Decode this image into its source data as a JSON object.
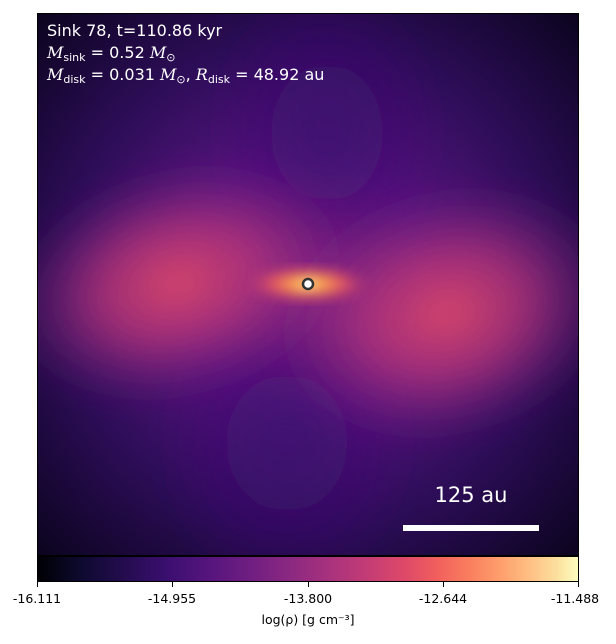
{
  "figure": {
    "title": "Sink 78, t=110.86 kyr",
    "mass_label": "M",
    "mass_sub": "sink",
    "mass_value": "= 0.52",
    "mass_unit": "M",
    "mass_unit_sub": "⊙",
    "disk_mass_label": "M",
    "disk_mass_sub": "disk",
    "disk_mass_value": "= 0.031",
    "disk_mass_unit": "M",
    "disk_mass_unit_sub": "⊙",
    "disk_radius_label": "R",
    "disk_radius_sub": "disk",
    "disk_radius_value": "= 48.92 au",
    "scalebar_label": "125 au"
  },
  "colorbar": {
    "label": "log(ρ) [g cm⁻³]",
    "colormap": "inferno",
    "min": -16.111,
    "max": -11.488,
    "ticks": [
      "-16.111",
      "-14.955",
      "-13.800",
      "-12.644",
      "-11.488"
    ]
  },
  "colors": {
    "background_dark": "#140b34",
    "envelope": "#3b0f70",
    "outflow_lobe": "#c43c75",
    "disk_core": "#fcdf9d",
    "sink_marker_fill": "#ffffff",
    "sink_marker_ring": "#333333"
  }
}
